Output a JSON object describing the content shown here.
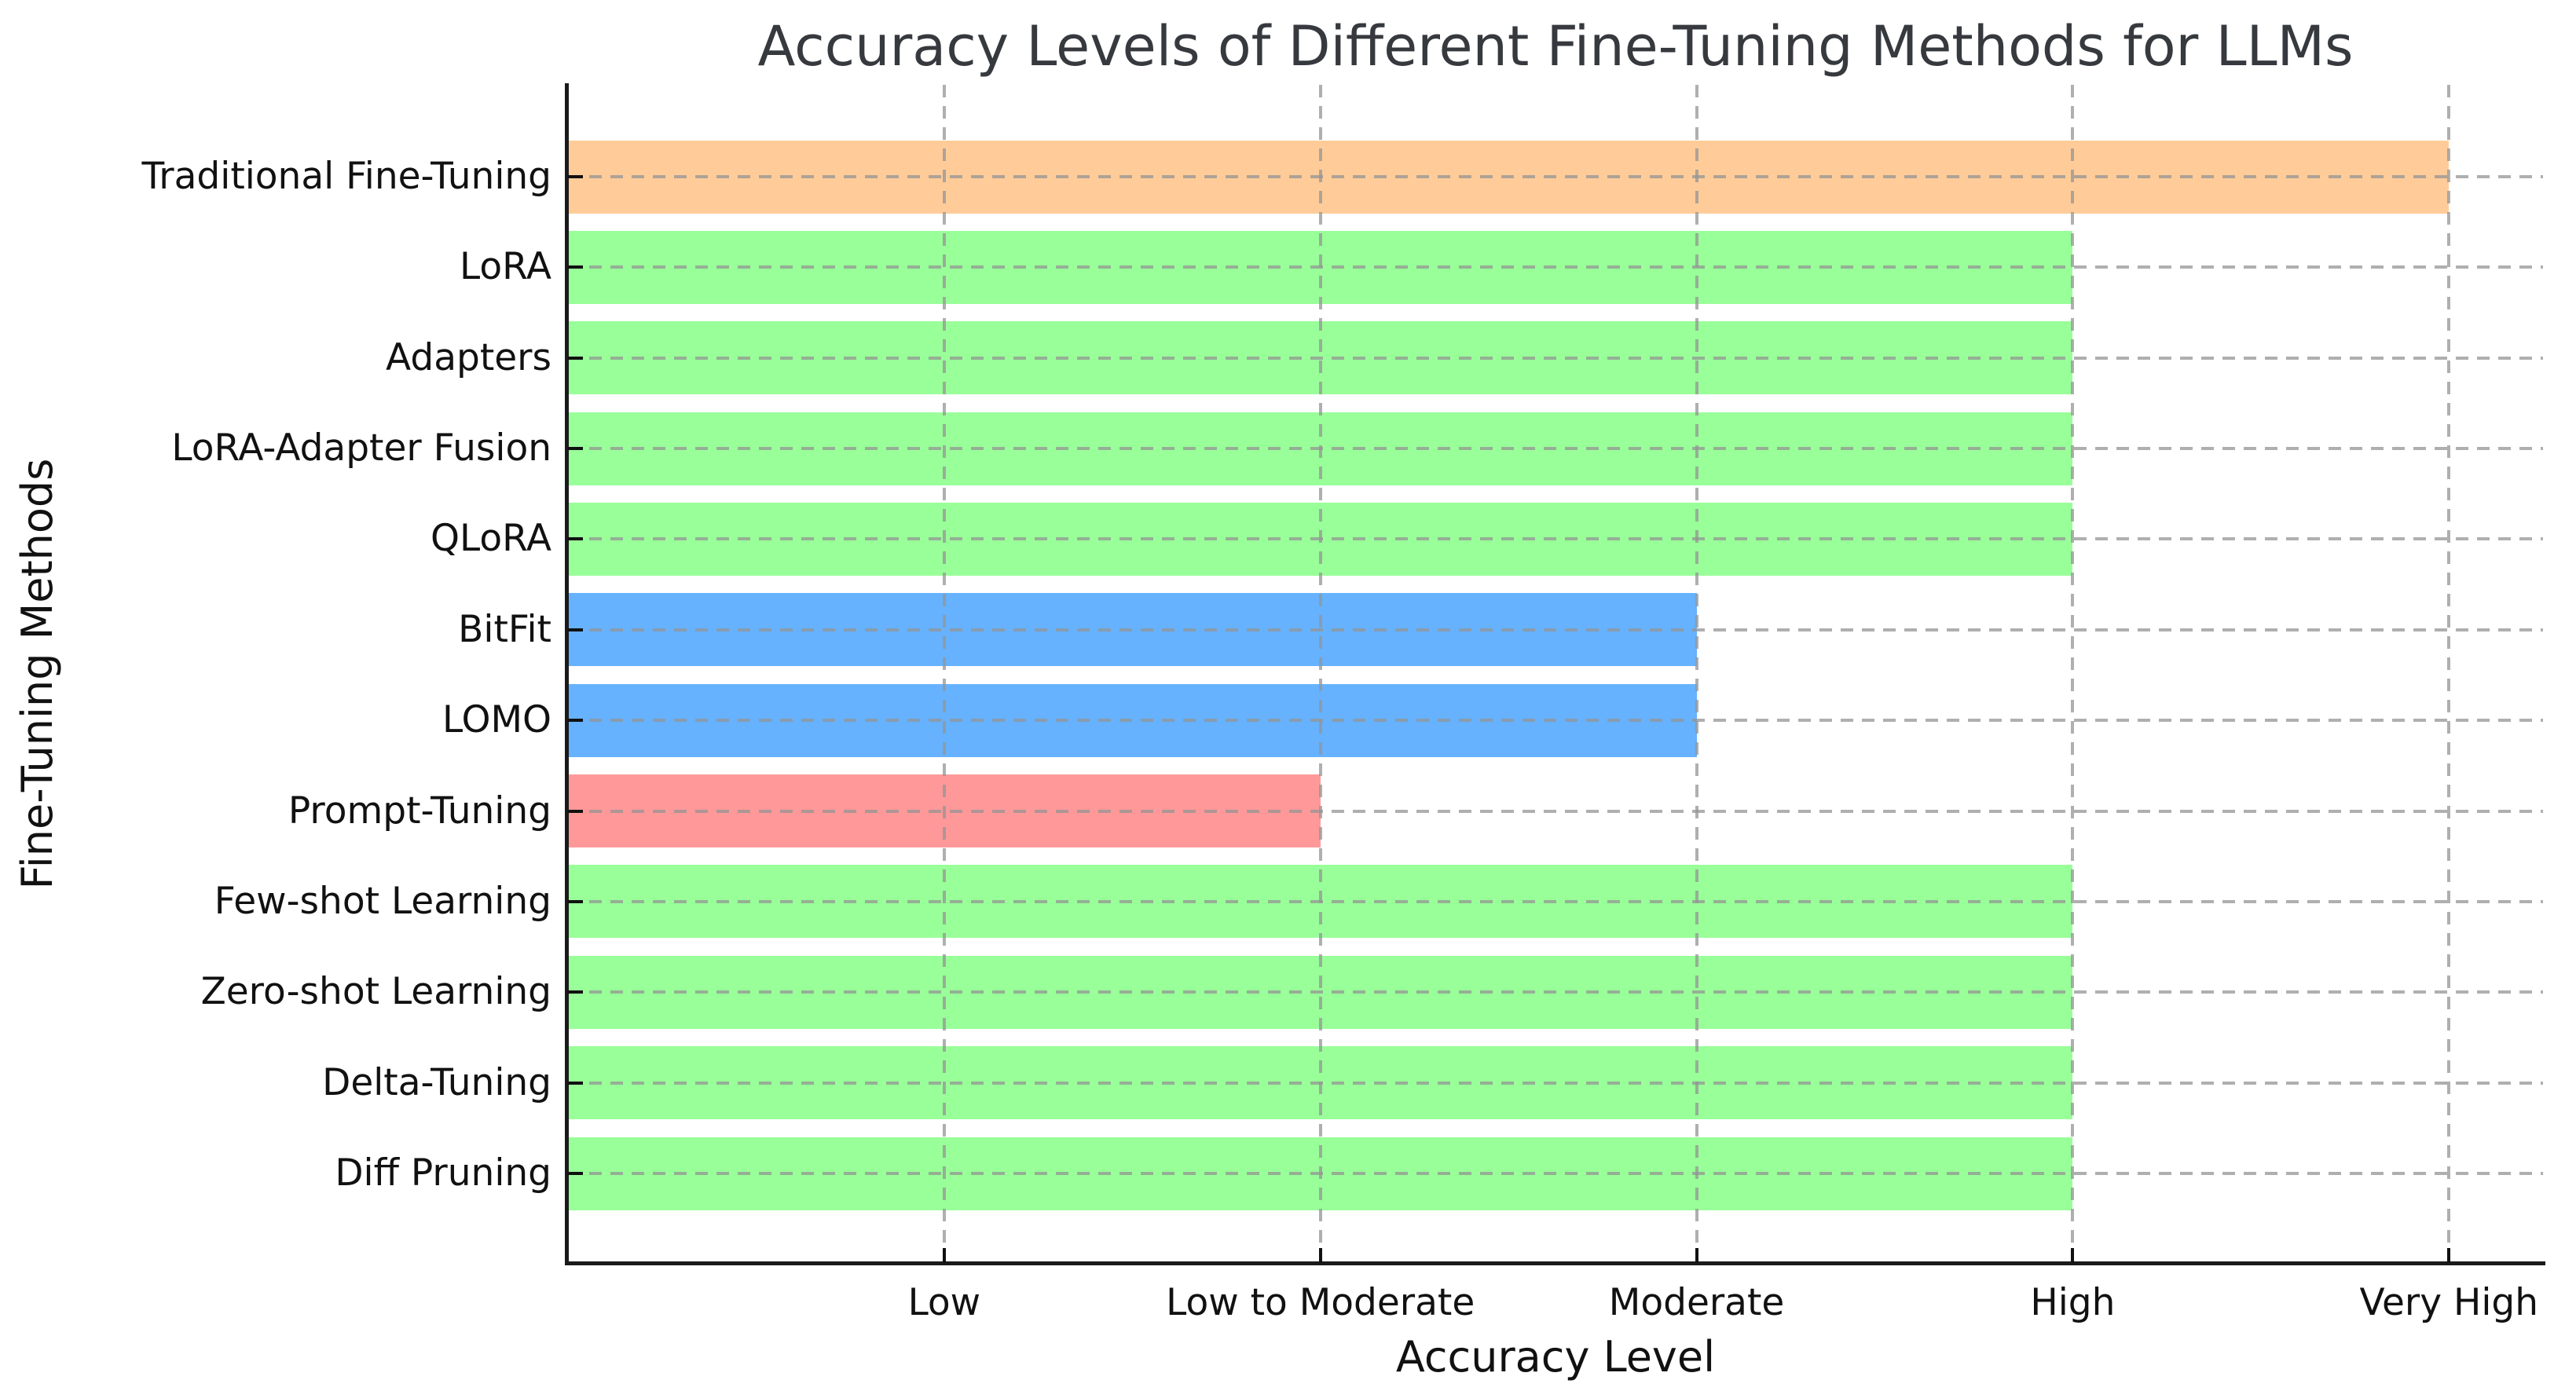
{
  "chart_data": {
    "type": "bar",
    "orientation": "horizontal",
    "title": "Accuracy Levels of Different Fine-Tuning Methods for LLMs",
    "xlabel": "Accuracy Level",
    "ylabel": "Fine-Tuning Methods",
    "categories": [
      "Traditional Fine-Tuning",
      "LoRA",
      "Adapters",
      "LoRA-Adapter Fusion",
      "QLoRA",
      "BitFit",
      "LOMO",
      "Prompt-Tuning",
      "Few-shot Learning",
      "Zero-shot Learning",
      "Delta-Tuning",
      "Diff Pruning"
    ],
    "values": [
      5,
      4,
      4,
      4,
      4,
      3,
      3,
      2,
      4,
      4,
      4,
      4
    ],
    "value_labels": [
      "Very High",
      "High",
      "High",
      "High",
      "High",
      "Moderate",
      "Moderate",
      "Low to Moderate",
      "High",
      "High",
      "High",
      "High"
    ],
    "bar_colors": [
      "#ffcc99",
      "#99ff99",
      "#99ff99",
      "#99ff99",
      "#99ff99",
      "#66b2ff",
      "#66b2ff",
      "#ff9999",
      "#99ff99",
      "#99ff99",
      "#99ff99",
      "#99ff99"
    ],
    "x_ticks": {
      "values": [
        1,
        2,
        3,
        4,
        5
      ],
      "labels": [
        "Low",
        "Low to Moderate",
        "Moderate",
        "High",
        "Very High"
      ]
    },
    "xlim": [
      0,
      5.25
    ],
    "grid": {
      "axis": "both",
      "style": "dashed",
      "color": "#b0b0b0"
    },
    "legend_position": "none",
    "colors": {
      "spine": "#1a1a1a",
      "tick": "#111111",
      "title_text": "#36393e",
      "label_text": "#111111",
      "background": "#ffffff"
    }
  }
}
